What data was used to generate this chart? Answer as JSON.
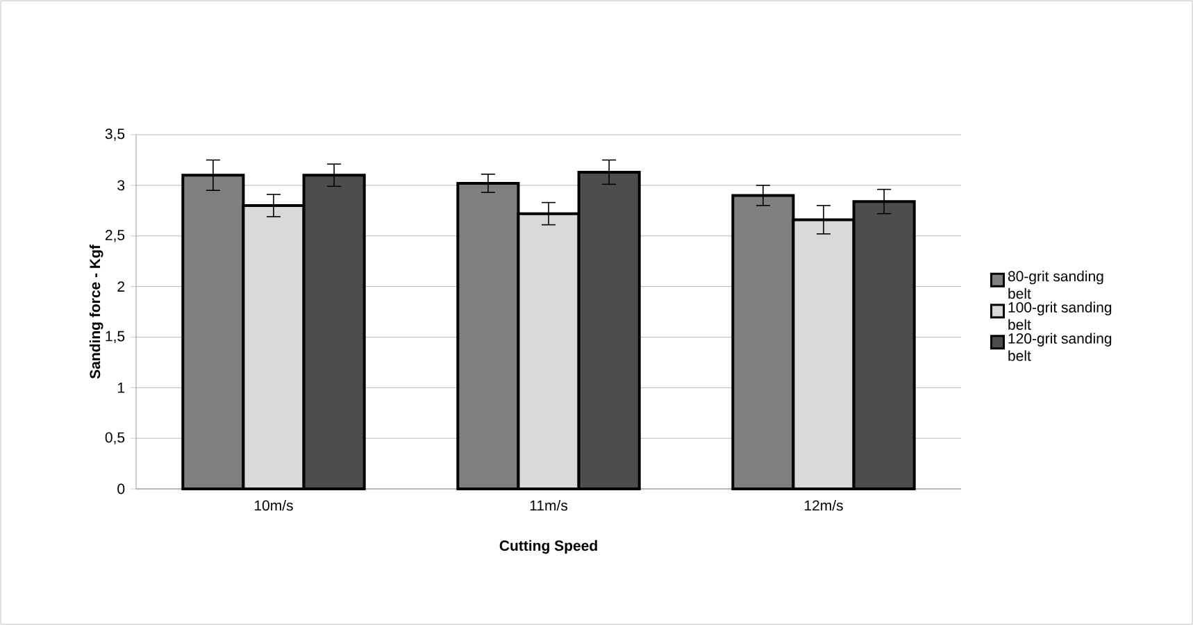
{
  "chart_data": {
    "type": "bar",
    "xlabel": "Cutting Speed",
    "ylabel": "Sanding force  - Kgf",
    "categories": [
      "10m/s",
      "11m/s",
      "12m/s"
    ],
    "series": [
      {
        "name": "80-grit sanding belt",
        "color": "#808080",
        "values": [
          3.1,
          3.02,
          2.9
        ],
        "errors": [
          0.15,
          0.09,
          0.1
        ]
      },
      {
        "name": "100-grit sanding belt",
        "color": "#d9d9d9",
        "values": [
          2.8,
          2.72,
          2.66
        ],
        "errors": [
          0.11,
          0.11,
          0.14
        ]
      },
      {
        "name": "120-grit sanding belt",
        "color": "#4d4d4d",
        "values": [
          3.1,
          3.13,
          2.84
        ],
        "errors": [
          0.11,
          0.12,
          0.12
        ]
      }
    ],
    "ylim": [
      0,
      3.5
    ],
    "yticks": [
      0,
      {
        "value": 0.5,
        "label": "0,5"
      },
      1,
      {
        "value": 1.5,
        "label": "1,5"
      },
      2,
      {
        "value": 2.5,
        "label": "2,5"
      },
      3,
      {
        "value": 3.5,
        "label": "3,5"
      }
    ],
    "grid": "y",
    "legend": "right"
  }
}
